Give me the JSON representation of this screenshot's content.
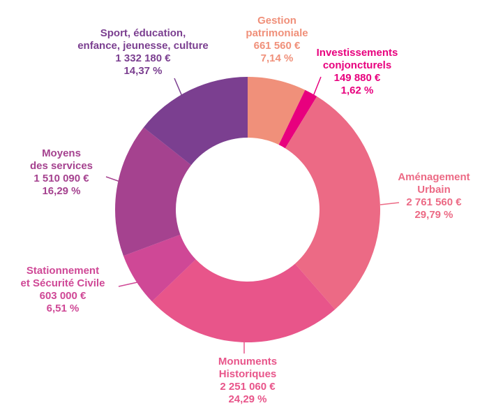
{
  "chart_data": {
    "type": "donut",
    "categories": [
      [
        "Gestion",
        "patrimoniale"
      ],
      [
        "Investissements",
        "conjoncturels"
      ],
      [
        "Aménagement",
        "Urbain"
      ],
      [
        "Monuments",
        "Historiques"
      ],
      [
        "Stationnement",
        "et Sécurité Civile"
      ],
      [
        "Moyens",
        "des services"
      ],
      [
        "Sport, éducation,",
        "enfance, jeunesse, culture"
      ]
    ],
    "values": [
      661560,
      149880,
      2761560,
      2251060,
      603000,
      1510090,
      1332180
    ],
    "value_labels": [
      "661 560 €",
      "149 880 €",
      "2 761 560 €",
      "2 251 060 €",
      "603 000 €",
      "1 510 090 €",
      "1 332 180 €"
    ],
    "percentages": [
      7.14,
      1.62,
      29.79,
      24.29,
      6.51,
      16.29,
      14.37
    ],
    "percentage_labels": [
      "7,14 %",
      "1,62 %",
      "29,79 %",
      "24,29 %",
      "6,51 %",
      "16,29 %",
      "14,37 %"
    ],
    "colors": [
      "#f0907a",
      "#e8007e",
      "#ec6a85",
      "#e8558a",
      "#cf4896",
      "#a5428f",
      "#7b3f90"
    ]
  }
}
